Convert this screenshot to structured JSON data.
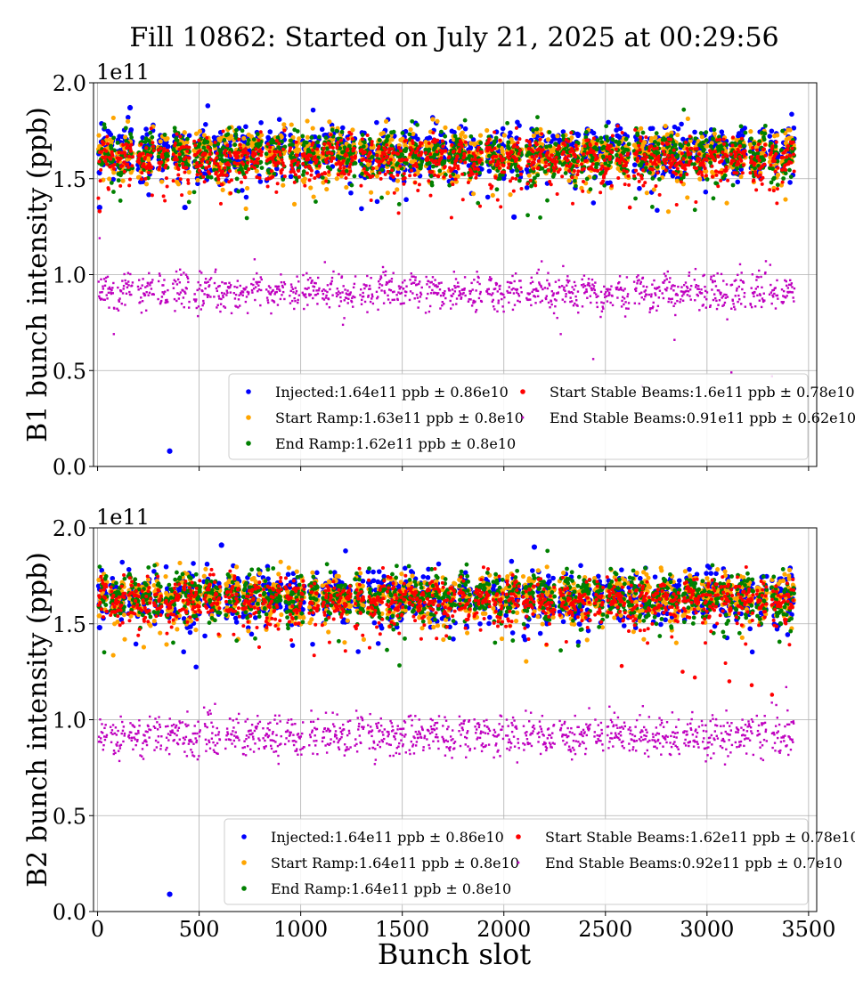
{
  "title": "Fill 10862: Started on July 21, 2025 at 00:29:56",
  "xlabel": "Bunch slot",
  "colors": {
    "injected": "#0000ff",
    "start_ramp": "#ffa500",
    "end_ramp": "#008000",
    "start_stable": "#ff0000",
    "end_stable": "#bf00bf",
    "grid": "#b0b0b0"
  },
  "chart_data": [
    {
      "type": "scatter",
      "ylabel": "B1 bunch intensity (ppb)",
      "y_offset_label": "1e11",
      "xlim": [
        -20,
        3540
      ],
      "ylim": [
        0.0,
        2.0
      ],
      "xticks": [
        0,
        500,
        1000,
        1500,
        2000,
        2500,
        3000,
        3500
      ],
      "yticks": [
        "0.0",
        "0.5",
        "1.0",
        "1.5",
        "2.0"
      ],
      "show_xtick_labels": false,
      "grid": true,
      "legend_position": "lower right",
      "legend": [
        "Injected:1.64e11 ppb ± 0.86e10",
        "Start Ramp:1.63e11 ppb ± 0.8e10",
        "End Ramp:1.62e11 ppb ± 0.8e10",
        "Start Stable Beams:1.6e11 ppb ± 0.78e10",
        "End Stable Beams:0.91e11 ppb ± 0.62e10"
      ],
      "series": [
        {
          "key": "injected",
          "mean": 1.64,
          "sd": 0.086,
          "outliers": [
            [
              355,
              0.08
            ],
            [
              10,
              1.35
            ],
            [
              2050,
              1.3
            ],
            [
              160,
              1.87
            ],
            [
              430,
              1.35
            ]
          ]
        },
        {
          "key": "start_ramp",
          "mean": 1.63,
          "sd": 0.08,
          "outliers": []
        },
        {
          "key": "end_ramp",
          "mean": 1.62,
          "sd": 0.08,
          "outliers": []
        },
        {
          "key": "start_stable",
          "mean": 1.6,
          "sd": 0.078,
          "outliers": [
            [
              10,
              1.33
            ],
            [
              2620,
              1.35
            ]
          ]
        },
        {
          "key": "end_stable",
          "mean": 0.91,
          "sd": 0.062,
          "outliers": [
            [
              10,
              1.19
            ],
            [
              80,
              0.69
            ],
            [
              2440,
              0.56
            ],
            [
              2840,
              0.66
            ],
            [
              2680,
              0.42
            ],
            [
              3120,
              0.49
            ],
            [
              3320,
              0.47
            ],
            [
              2280,
              0.69
            ],
            [
              3290,
              1.07
            ]
          ]
        }
      ]
    },
    {
      "type": "scatter",
      "ylabel": "B2 bunch intensity (ppb)",
      "y_offset_label": "1e11",
      "xlim": [
        -20,
        3540
      ],
      "ylim": [
        0.0,
        2.0
      ],
      "xticks": [
        0,
        500,
        1000,
        1500,
        2000,
        2500,
        3000,
        3500
      ],
      "xtick_labels": [
        "0",
        "500",
        "1000",
        "1500",
        "2000",
        "2500",
        "3000",
        "3500"
      ],
      "yticks": [
        "0.0",
        "0.5",
        "1.0",
        "1.5",
        "2.0"
      ],
      "show_xtick_labels": true,
      "grid": true,
      "legend_position": "lower right",
      "legend": [
        "Injected:1.64e11 ppb ± 0.86e10",
        "Start Ramp:1.64e11 ppb ± 0.8e10",
        "End Ramp:1.64e11 ppb ± 0.8e10",
        "Start Stable Beams:1.62e11 ppb ± 0.78e10",
        "End Stable Beams:0.92e11 ppb ± 0.7e10"
      ],
      "series": [
        {
          "key": "injected",
          "mean": 1.64,
          "sd": 0.086,
          "outliers": [
            [
              355,
              0.09
            ],
            [
              10,
              1.48
            ],
            [
              610,
              1.91
            ],
            [
              2150,
              1.9
            ]
          ]
        },
        {
          "key": "start_ramp",
          "mean": 1.64,
          "sd": 0.08,
          "outliers": []
        },
        {
          "key": "end_ramp",
          "mean": 1.64,
          "sd": 0.08,
          "outliers": []
        },
        {
          "key": "start_stable",
          "mean": 1.62,
          "sd": 0.078,
          "outliers": [
            [
              2580,
              1.28
            ],
            [
              2880,
              1.25
            ],
            [
              3110,
              1.2
            ],
            [
              3220,
              1.18
            ],
            [
              3320,
              1.13
            ],
            [
              2940,
              1.22
            ]
          ]
        },
        {
          "key": "end_stable",
          "mean": 0.92,
          "sd": 0.07,
          "outliers": [
            [
              2420,
              1.06
            ],
            [
              3390,
              1.17
            ]
          ]
        }
      ]
    }
  ]
}
